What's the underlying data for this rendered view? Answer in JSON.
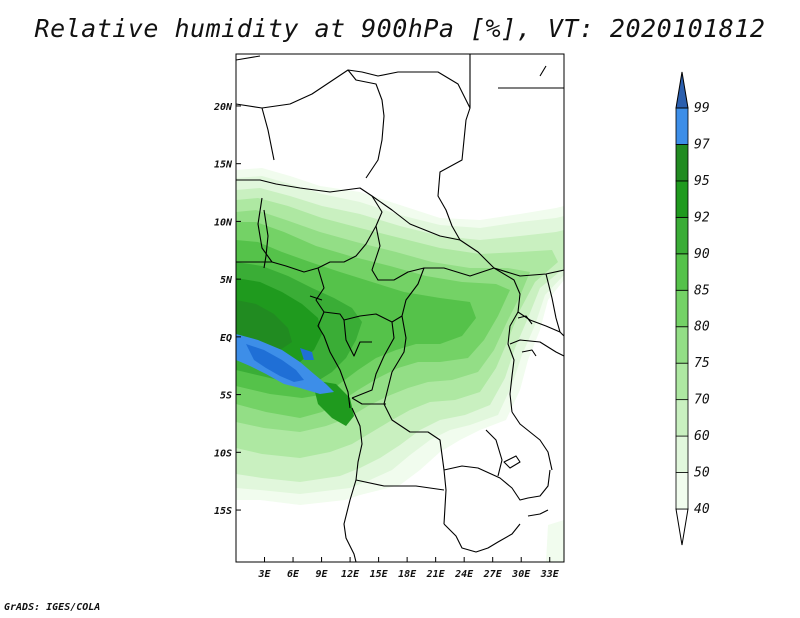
{
  "title": "Relative humidity at 900hPa [%], VT: 2020101812",
  "credit": "GrADS: IGES/COLA",
  "colors": {
    "c40": "#f1fcee",
    "c50": "#e1f7dc",
    "c60": "#c9f0c0",
    "c70": "#aee8a2",
    "c75": "#93de86",
    "c80": "#74d266",
    "c85": "#55c24a",
    "c90": "#3aad36",
    "c92": "#1f9a1e",
    "c95": "#218b21",
    "c97": "#3d8ee8",
    "c99": "#1f6fd6",
    "c100": "#2b5fae",
    "border": "#000000"
  },
  "map": {
    "lon_range": [
      0,
      34.5
    ],
    "lat_range": [
      -19.5,
      24.5
    ],
    "x_ticks": [
      "3E",
      "6E",
      "9E",
      "12E",
      "15E",
      "18E",
      "21E",
      "24E",
      "27E",
      "30E",
      "33E"
    ],
    "y_ticks": [
      "20N",
      "15N",
      "10N",
      "5N",
      "EQ",
      "5S",
      "10S",
      "15S"
    ]
  },
  "colorbar": {
    "labels": [
      "40",
      "50",
      "60",
      "70",
      "75",
      "80",
      "85",
      "90",
      "92",
      "95",
      "97",
      "99"
    ]
  }
}
